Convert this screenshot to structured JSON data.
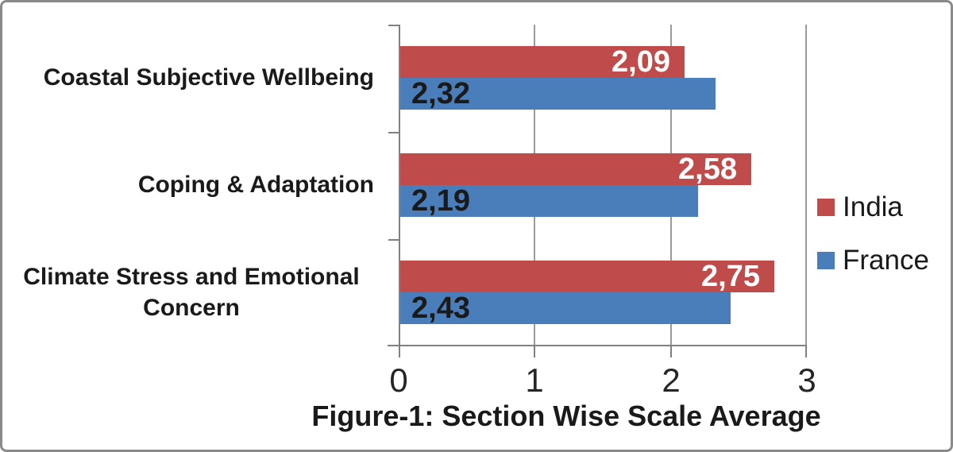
{
  "chart_data": {
    "type": "bar",
    "orientation": "horizontal",
    "title": "Figure-1: Section Wise Scale Average",
    "categories": [
      "Coastal Subjective Wellbeing",
      "Coping & Adaptation",
      "Climate Stress and Emotional Concern"
    ],
    "series": [
      {
        "name": "India",
        "color": "#BF4C4A",
        "label_color": "#FFFFFF",
        "values": [
          2.09,
          2.58,
          2.75
        ],
        "labels": [
          "2,09",
          "2,58",
          "2,75"
        ]
      },
      {
        "name": "France",
        "color": "#4A7EBB",
        "label_color": "#1A1A1A",
        "values": [
          2.32,
          2.19,
          2.43
        ],
        "labels": [
          "2,32",
          "2,19",
          "2,43"
        ]
      }
    ],
    "x_axis": {
      "min": 0,
      "max": 3,
      "ticks": [
        "0",
        "1",
        "2",
        "3"
      ]
    },
    "legend": {
      "position": "right",
      "entries": [
        "India",
        "France"
      ]
    },
    "grid": "vertical-gridlines-at-1-2-3",
    "colors": {
      "gridline": "#9B9B9B",
      "axis": "#808080",
      "text": "#1A1A1A",
      "frame_border": "#8A8A8A",
      "background": "#FFFFFF"
    }
  }
}
